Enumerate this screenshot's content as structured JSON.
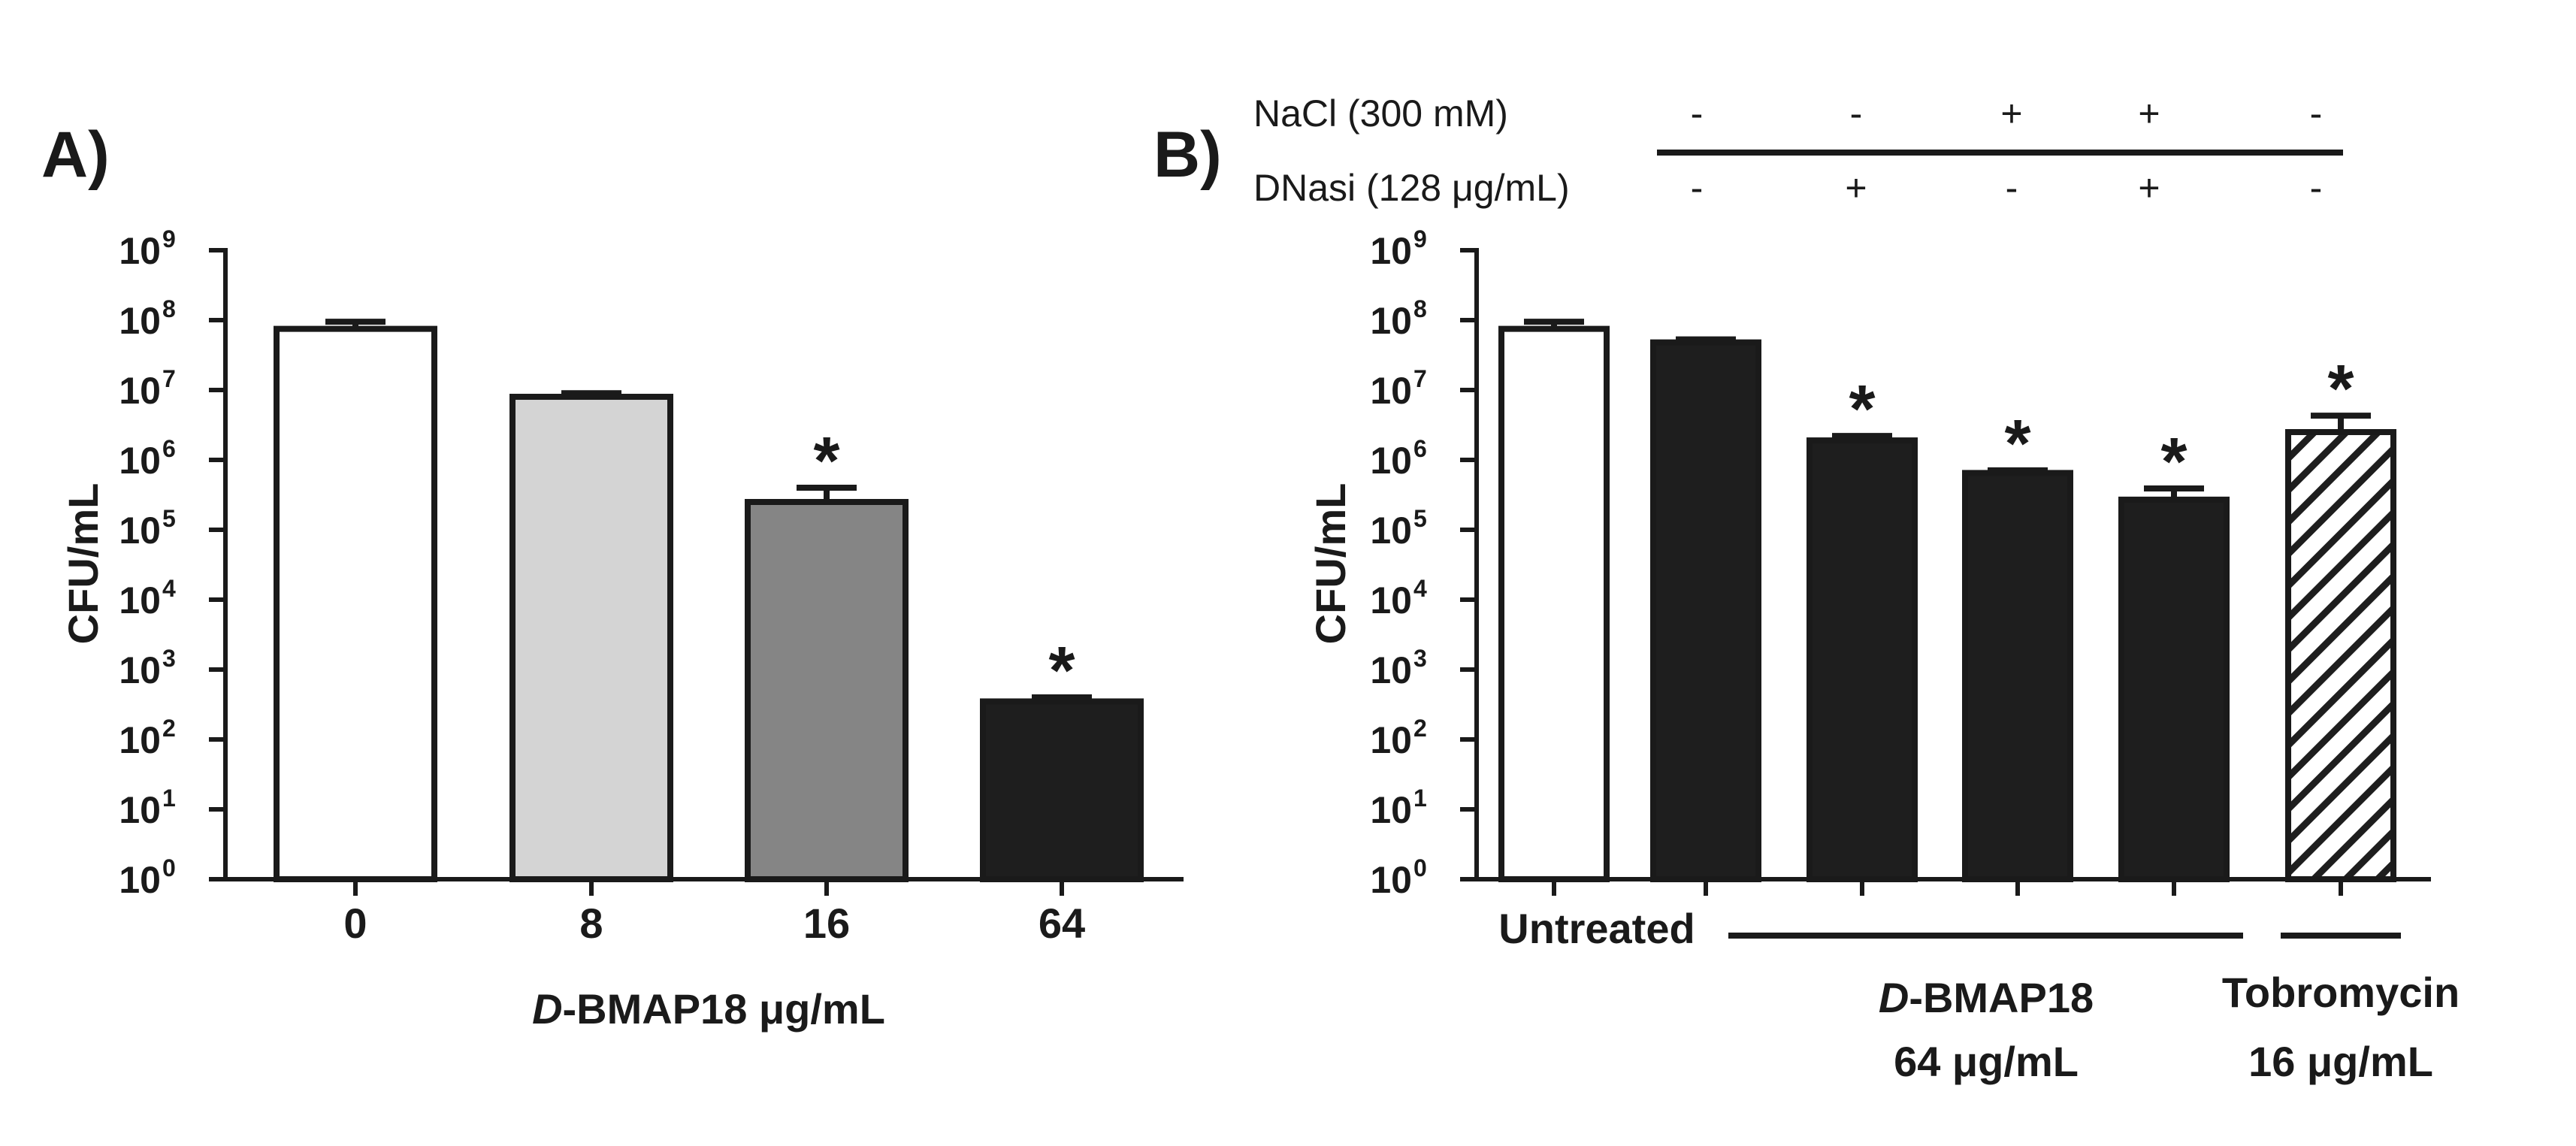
{
  "chart_data": [
    {
      "panel": "A)",
      "type": "bar",
      "scale": "log10",
      "ylabel": "CFU/mL",
      "xlabel": {
        "italic": "D",
        "rest": "-BMAP18 μg/mL"
      },
      "ylim": [
        1,
        1000000000
      ],
      "ytick_base": "10",
      "ytick_exponents": [
        "0",
        "1",
        "2",
        "3",
        "4",
        "5",
        "6",
        "7",
        "8",
        "9"
      ],
      "categories": [
        "0",
        "8",
        "16",
        "64"
      ],
      "values": [
        75000000,
        8000000,
        250000,
        350
      ],
      "errors": [
        20000000,
        1000000,
        150000,
        50
      ],
      "fills": [
        "#ffffff",
        "#d4d4d4",
        "#858585",
        "#1e1e1e"
      ],
      "significant": [
        false,
        false,
        true,
        true
      ],
      "star_label": "*"
    },
    {
      "panel": "B)",
      "type": "bar",
      "scale": "log10",
      "ylabel": "CFU/mL",
      "ylim": [
        1,
        1000000000
      ],
      "ytick_base": "10",
      "ytick_exponents": [
        "0",
        "1",
        "2",
        "3",
        "4",
        "5",
        "6",
        "7",
        "8",
        "9"
      ],
      "conditions": [
        {
          "label": "NaCl (300 mM)",
          "signs": [
            "-",
            "-",
            "+",
            "+",
            "-"
          ]
        },
        {
          "label": "DNasi (128 μg/mL)",
          "signs": [
            "-",
            "+",
            "-",
            "+",
            "-"
          ]
        }
      ],
      "bars": [
        {
          "value": 75000000,
          "error": 20000000,
          "fill": "white",
          "significant": false
        },
        {
          "value": 48000000,
          "error": 5000000,
          "fill": "black",
          "significant": false
        },
        {
          "value": 1900000,
          "error": 300000,
          "fill": "black",
          "significant": true
        },
        {
          "value": 650000,
          "error": 60000,
          "fill": "black",
          "significant": true
        },
        {
          "value": 270000,
          "error": 120000,
          "fill": "black",
          "significant": true
        },
        {
          "value": 2500000,
          "error": 1800000,
          "fill": "hatched",
          "significant": true
        }
      ],
      "group_labels": {
        "untreated": "Untreated",
        "bmap": {
          "italic": "D",
          "line1_rest": "-BMAP18",
          "line2": "64 μg/mL"
        },
        "tobra": {
          "line1": "Tobromycin",
          "line2": "16 μg/mL"
        }
      },
      "star_label": "*"
    }
  ]
}
